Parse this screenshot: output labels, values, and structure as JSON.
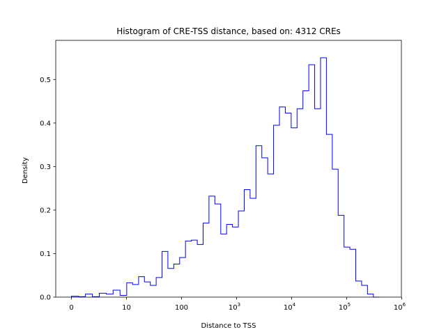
{
  "chart_data": {
    "type": "histogram",
    "title": "Histogram of CRE-TSS distance, based on: 4312 CREs",
    "xlabel": "Distance to TSS",
    "ylabel": "Density",
    "x_scale": "symlog",
    "x_ticks": [
      {
        "value": 0,
        "label": "0"
      },
      {
        "value": 10,
        "label": "10"
      },
      {
        "value": 100,
        "label": "100"
      },
      {
        "value": 1000,
        "label": "10",
        "exp": "3"
      },
      {
        "value": 10000,
        "label": "10",
        "exp": "4"
      },
      {
        "value": 100000,
        "label": "10",
        "exp": "5"
      },
      {
        "value": 1000000,
        "label": "10",
        "exp": "6"
      }
    ],
    "y_ticks": [
      "0.0",
      "0.1",
      "0.2",
      "0.3",
      "0.4",
      "0.5"
    ],
    "ylim": [
      0,
      0.59
    ],
    "line_color": "#0000ff",
    "bin_edges": [
      0,
      1.3,
      2.55,
      3.81,
      5.06,
      6.32,
      7.57,
      8.83,
      10.1,
      12.9,
      16.6,
      21.2,
      27.1,
      34.6,
      44.2,
      56.5,
      72.3,
      92.4,
      118,
      151,
      193,
      247,
      315,
      403,
      516,
      659,
      842,
      1077,
      1376,
      1759,
      2249,
      2875,
      3675,
      4698,
      6005,
      7676,
      9812,
      12543,
      16034,
      20496,
      26200,
      33492,
      42813,
      54727,
      69957,
      89426,
      114312,
      146124,
      186790,
      238773,
      305223,
      390166
    ],
    "values": [
      0.002,
      0.001,
      0.007,
      0.001,
      0.009,
      0.007,
      0.016,
      0.004,
      0.033,
      0.029,
      0.047,
      0.035,
      0.027,
      0.045,
      0.105,
      0.066,
      0.076,
      0.091,
      0.129,
      0.131,
      0.121,
      0.17,
      0.232,
      0.214,
      0.145,
      0.167,
      0.161,
      0.198,
      0.247,
      0.227,
      0.348,
      0.32,
      0.283,
      0.395,
      0.437,
      0.423,
      0.389,
      0.433,
      0.474,
      0.534,
      0.433,
      0.55,
      0.374,
      0.294,
      0.188,
      0.115,
      0.11,
      0.037,
      0.027,
      0.007,
      0.0
    ]
  }
}
